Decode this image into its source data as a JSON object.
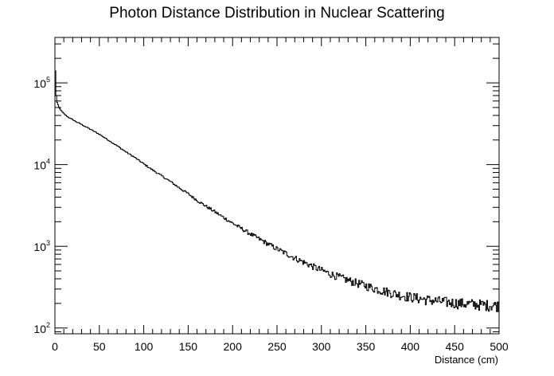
{
  "chart_data": {
    "type": "line",
    "title": "Photon Distance Distribution in Nuclear Scattering",
    "xlabel": "Distance (cm)",
    "ylabel": "",
    "xlim": [
      0,
      500
    ],
    "ylim": [
      85,
      360000
    ],
    "y_scale": "log",
    "grid": false,
    "legend": "none",
    "x_ticks": [
      "0",
      "50",
      "100",
      "150",
      "200",
      "250",
      "300",
      "350",
      "400",
      "450",
      "500"
    ],
    "y_ticks": [
      {
        "base": "10",
        "exp": "2"
      },
      {
        "base": "10",
        "exp": "3"
      },
      {
        "base": "10",
        "exp": "4"
      },
      {
        "base": "10",
        "exp": "5"
      }
    ],
    "series": [
      {
        "style": "step",
        "x": [
          0,
          0.5,
          1,
          1.5,
          2,
          3,
          4,
          5,
          7,
          10,
          15,
          20,
          25,
          30,
          40,
          50,
          60,
          70,
          80,
          90,
          100,
          110,
          120,
          130,
          140,
          150,
          160,
          170,
          180,
          190,
          200,
          210,
          220,
          230,
          240,
          250,
          260,
          270,
          280,
          290,
          300,
          310,
          320,
          330,
          340,
          350,
          360,
          370,
          380,
          390,
          400,
          410,
          420,
          430,
          440,
          450,
          460,
          470,
          480,
          490,
          500
        ],
        "values": [
          200000,
          140000,
          90000,
          70000,
          60000,
          55000,
          52000,
          49000,
          46000,
          42000,
          38000,
          35500,
          33000,
          31000,
          27000,
          23500,
          20000,
          17000,
          14300,
          12200,
          10200,
          8600,
          7300,
          6200,
          5200,
          4400,
          3650,
          3100,
          2650,
          2250,
          1920,
          1650,
          1420,
          1230,
          1070,
          930,
          820,
          720,
          640,
          570,
          510,
          460,
          420,
          385,
          355,
          330,
          305,
          285,
          268,
          252,
          240,
          230,
          221,
          214,
          208,
          203,
          199,
          196,
          193,
          190,
          188
        ]
      }
    ]
  }
}
